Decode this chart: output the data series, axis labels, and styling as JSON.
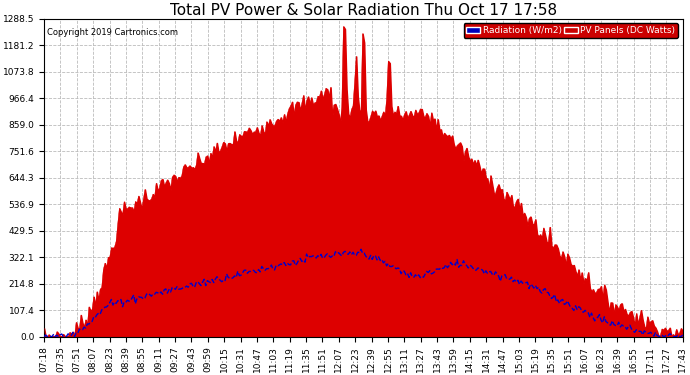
{
  "title": "Total PV Power & Solar Radiation Thu Oct 17 17:58",
  "copyright": "Copyright 2019 Cartronics.com",
  "legend_labels": [
    "Radiation (W/m2)",
    "PV Panels (DC Watts)"
  ],
  "legend_colors_bg": [
    "#0000bb",
    "#cc0000"
  ],
  "ylim": [
    0,
    1288.5
  ],
  "yticks": [
    0.0,
    107.4,
    214.8,
    322.1,
    429.5,
    536.9,
    644.3,
    751.6,
    859.0,
    966.4,
    1073.8,
    1181.2,
    1288.5
  ],
  "bg_color": "#ffffff",
  "grid_color": "#bbbbbb",
  "title_fontsize": 11,
  "tick_fontsize": 6.5,
  "pv_color": "#dd0000",
  "rad_color": "#0000cc",
  "x_labels": [
    "07:18",
    "07:35",
    "07:51",
    "08:07",
    "08:23",
    "08:39",
    "08:55",
    "09:11",
    "09:27",
    "09:43",
    "09:59",
    "10:15",
    "10:31",
    "10:47",
    "11:03",
    "11:19",
    "11:35",
    "11:51",
    "12:07",
    "12:23",
    "12:39",
    "12:55",
    "13:11",
    "13:27",
    "13:43",
    "13:59",
    "14:15",
    "14:31",
    "14:47",
    "15:03",
    "15:19",
    "15:35",
    "15:51",
    "16:07",
    "16:23",
    "16:39",
    "16:55",
    "17:11",
    "17:27",
    "17:43"
  ]
}
